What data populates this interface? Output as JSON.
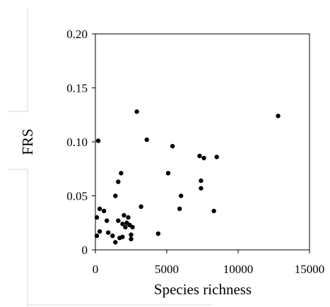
{
  "chart_data": {
    "type": "scatter",
    "title": "",
    "xlabel": "Species richness",
    "ylabel": "FRS",
    "xlim": [
      0,
      15000
    ],
    "ylim": [
      0,
      0.2
    ],
    "x_ticks": [
      "0",
      "5000",
      "10000",
      "15000"
    ],
    "y_ticks": [
      "0",
      "0.05",
      "0.10",
      "0.15",
      "0.20"
    ],
    "grid": false,
    "legend": "none",
    "marker_color": "#000000",
    "points": [
      {
        "x": 200,
        "y": 0.101
      },
      {
        "x": 100,
        "y": 0.03
      },
      {
        "x": 100,
        "y": 0.013
      },
      {
        "x": 300,
        "y": 0.038
      },
      {
        "x": 300,
        "y": 0.017
      },
      {
        "x": 600,
        "y": 0.036
      },
      {
        "x": 800,
        "y": 0.027
      },
      {
        "x": 900,
        "y": 0.016
      },
      {
        "x": 1200,
        "y": 0.013
      },
      {
        "x": 1400,
        "y": 0.007
      },
      {
        "x": 1400,
        "y": 0.05
      },
      {
        "x": 1600,
        "y": 0.063
      },
      {
        "x": 1600,
        "y": 0.027
      },
      {
        "x": 1700,
        "y": 0.011
      },
      {
        "x": 1800,
        "y": 0.071
      },
      {
        "x": 1900,
        "y": 0.012
      },
      {
        "x": 1900,
        "y": 0.024
      },
      {
        "x": 2000,
        "y": 0.032
      },
      {
        "x": 2100,
        "y": 0.021
      },
      {
        "x": 2200,
        "y": 0.025
      },
      {
        "x": 2300,
        "y": 0.03
      },
      {
        "x": 2400,
        "y": 0.023
      },
      {
        "x": 2500,
        "y": 0.014
      },
      {
        "x": 2500,
        "y": 0.01
      },
      {
        "x": 2600,
        "y": 0.021
      },
      {
        "x": 2900,
        "y": 0.128
      },
      {
        "x": 3200,
        "y": 0.04
      },
      {
        "x": 3600,
        "y": 0.102
      },
      {
        "x": 4400,
        "y": 0.015
      },
      {
        "x": 5100,
        "y": 0.071
      },
      {
        "x": 5400,
        "y": 0.096
      },
      {
        "x": 5900,
        "y": 0.038
      },
      {
        "x": 6000,
        "y": 0.05
      },
      {
        "x": 7300,
        "y": 0.087
      },
      {
        "x": 7400,
        "y": 0.064
      },
      {
        "x": 7400,
        "y": 0.057
      },
      {
        "x": 7600,
        "y": 0.085
      },
      {
        "x": 8300,
        "y": 0.036
      },
      {
        "x": 8500,
        "y": 0.086
      },
      {
        "x": 12800,
        "y": 0.124
      }
    ]
  }
}
